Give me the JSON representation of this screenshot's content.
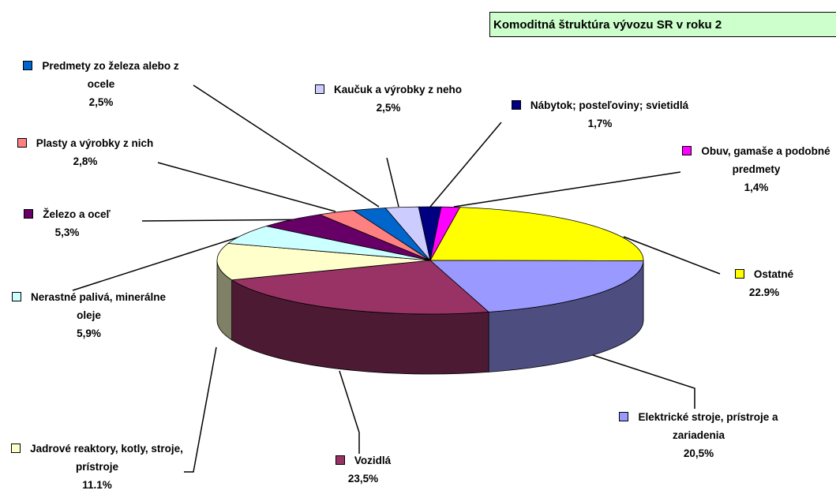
{
  "chart_data": {
    "type": "pie",
    "title": "Komoditná štruktúra vývozu SR v roku 2",
    "categories": [
      "Ostatné",
      "Elektrické stroje, prístroje a zariadenia",
      "Vozidlá",
      "Jadrové reaktory, kotly, stroje, prístroje",
      "Nerastné palivá, minerálne oleje",
      "Železo a oceľ",
      "Plasty a výrobky z nich",
      "Predmety zo železa alebo z ocele",
      "Kaučuk a výrobky z neho",
      "Nábytok; posteľoviny; svietidlá",
      "Obuv, gamaše a podobné predmety"
    ],
    "values": [
      22.9,
      20.5,
      23.5,
      11.1,
      5.9,
      5.3,
      2.8,
      2.5,
      2.5,
      1.7,
      1.4
    ],
    "value_labels": [
      "22.9%",
      "20,5%",
      "23,5%",
      "11.1%",
      "5,9%",
      "5,3%",
      "2,8%",
      "2,5%",
      "2,5%",
      "1,7%",
      "1,4%"
    ],
    "colors": [
      "#ffff00",
      "#9999ff",
      "#993366",
      "#ffffcc",
      "#ccffff",
      "#660066",
      "#ff8080",
      "#0066cc",
      "#ccccff",
      "#000080",
      "#ff00ff"
    ]
  }
}
